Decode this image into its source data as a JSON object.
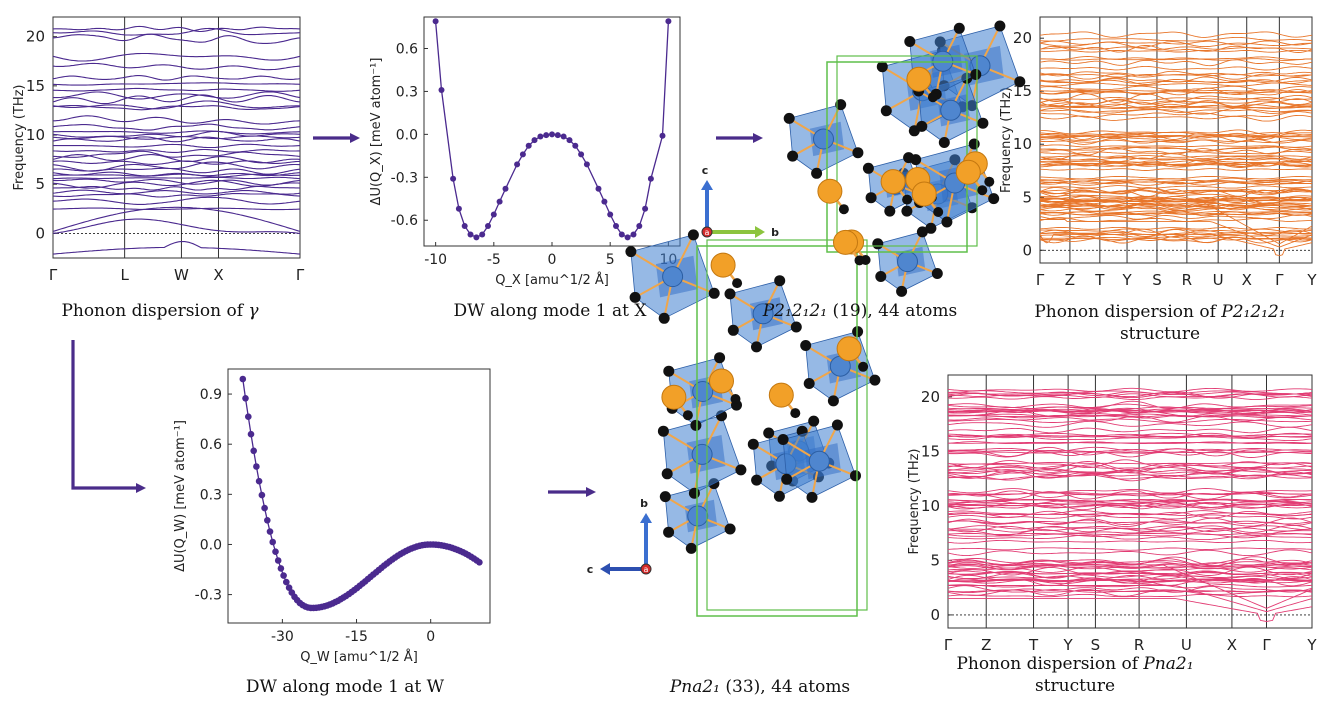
{
  "colors": {
    "purple": "#4b2a8f",
    "orange": "#e8762b",
    "pink": "#e23d74",
    "arrow": "#4a2c8a",
    "polyhedron": "#3f7fd0",
    "atom_orange": "#f2a028",
    "atom_black": "#111111",
    "cell_green": "#5fbf4a"
  },
  "captions": {
    "phonon_gamma": [
      "Phonon dispersion of ",
      "γ",
      ""
    ],
    "dw_x": "DW along mode 1 at X",
    "p212121": [
      "P2₁2₁2₁",
      " (19), 44 atoms"
    ],
    "phonon_p212121_line1": [
      "Phonon dispersion of ",
      "P2₁2₁2₁"
    ],
    "phonon_p212121_line2": "structure",
    "dw_w": "DW along mode 1 at W",
    "pna21": [
      "Pna2₁",
      " (33), 44 atoms"
    ],
    "phonon_pna21_line1": [
      "Phonon dispersion of ",
      "Pna2₁"
    ],
    "phonon_pna21_line2": "structure"
  },
  "axes_labels": {
    "struct1": {
      "c": "c",
      "b": "b",
      "a": "a"
    },
    "struct2": {
      "b": "b",
      "c": "c",
      "a": "a"
    }
  },
  "chart_data": [
    {
      "type": "line",
      "id": "phonon_gamma",
      "ylabel": "Frequency (THz)",
      "ylim": [
        -2.5,
        22
      ],
      "yticks": [
        0,
        5,
        10,
        15,
        20
      ],
      "path_labels": [
        "Γ",
        "L",
        "W",
        "X",
        "Γ"
      ],
      "zero_line": true,
      "color": "#4b2a8f",
      "band_frequencies_at_gamma": [
        0,
        1.2,
        2.5,
        3.3,
        4.2,
        5.0,
        5.6,
        6.1,
        6.8,
        7.5,
        8.4,
        9.4,
        10.0,
        10.8,
        12.8,
        13.5,
        14.6,
        15.2,
        17.0,
        19.8,
        20.8
      ]
    },
    {
      "type": "line",
      "id": "dw_x",
      "xlabel": "Q_X [amu^1/2 Å]",
      "ylabel": "ΔU(Q_X) [meV atom⁻¹]",
      "xlim": [
        -11,
        11
      ],
      "ylim": [
        -0.78,
        0.82
      ],
      "xticks": [
        -10,
        -5,
        0,
        5,
        10
      ],
      "yticks": [
        -0.6,
        -0.3,
        0.0,
        0.3,
        0.6
      ],
      "color": "#4b2a8f",
      "x": [
        -10,
        -9.5,
        -8.5,
        -8,
        -7.5,
        -7,
        -6.5,
        -6,
        -5.5,
        -5,
        -4.5,
        -4,
        -3,
        -2.5,
        -2,
        -1.5,
        -1,
        -0.5,
        0,
        0.5,
        1,
        1.5,
        2,
        2.5,
        3,
        4,
        4.5,
        5,
        5.5,
        6,
        6.5,
        7,
        7.5,
        8,
        8.5,
        9.5,
        10
      ],
      "y": [
        0.79,
        0.31,
        -0.31,
        -0.52,
        -0.64,
        -0.7,
        -0.72,
        -0.7,
        -0.64,
        -0.56,
        -0.47,
        -0.38,
        -0.21,
        -0.14,
        -0.08,
        -0.04,
        -0.015,
        -0.005,
        0,
        -0.005,
        -0.015,
        -0.04,
        -0.08,
        -0.14,
        -0.21,
        -0.38,
        -0.47,
        -0.56,
        -0.64,
        -0.7,
        -0.72,
        -0.7,
        -0.64,
        -0.52,
        -0.31,
        -0.01,
        0.79
      ]
    },
    {
      "type": "line",
      "id": "phonon_p212121",
      "ylabel": "Frequency (THz)",
      "ylim": [
        -1.2,
        22
      ],
      "yticks": [
        0,
        5,
        10,
        15,
        20
      ],
      "path_labels": [
        "Γ",
        "Z",
        "T",
        "Y",
        "S",
        "R",
        "U",
        "X",
        "Γ",
        "Y"
      ],
      "zero_line": true,
      "color": "#e8762b"
    },
    {
      "type": "line",
      "id": "dw_w",
      "xlabel": "Q_W [amu^1/2 Å]",
      "ylabel": "ΔU(Q_W) [meV atom⁻¹]",
      "xlim": [
        -41,
        12
      ],
      "ylim": [
        -0.47,
        1.05
      ],
      "xticks": [
        -30,
        -15,
        0
      ],
      "yticks": [
        -0.3,
        0.0,
        0.3,
        0.6,
        0.9
      ],
      "color": "#4b2a8f",
      "x_start": -38,
      "x_end": 10,
      "minimum": {
        "x": -24,
        "y": -0.38
      },
      "saddle": {
        "x": 0,
        "y": 0.0
      },
      "endpoint_y": [
        0.99,
        -0.11
      ]
    },
    {
      "type": "line",
      "id": "phonon_pna21",
      "ylabel": "Frequency (THz)",
      "ylim": [
        -1.2,
        22
      ],
      "yticks": [
        0,
        5,
        10,
        15,
        20
      ],
      "path_labels": [
        "Γ",
        "Z",
        "T",
        "Y",
        "S",
        "R",
        "U",
        "X",
        "Γ",
        "Y"
      ],
      "zero_line": true,
      "color": "#e23d74"
    }
  ]
}
